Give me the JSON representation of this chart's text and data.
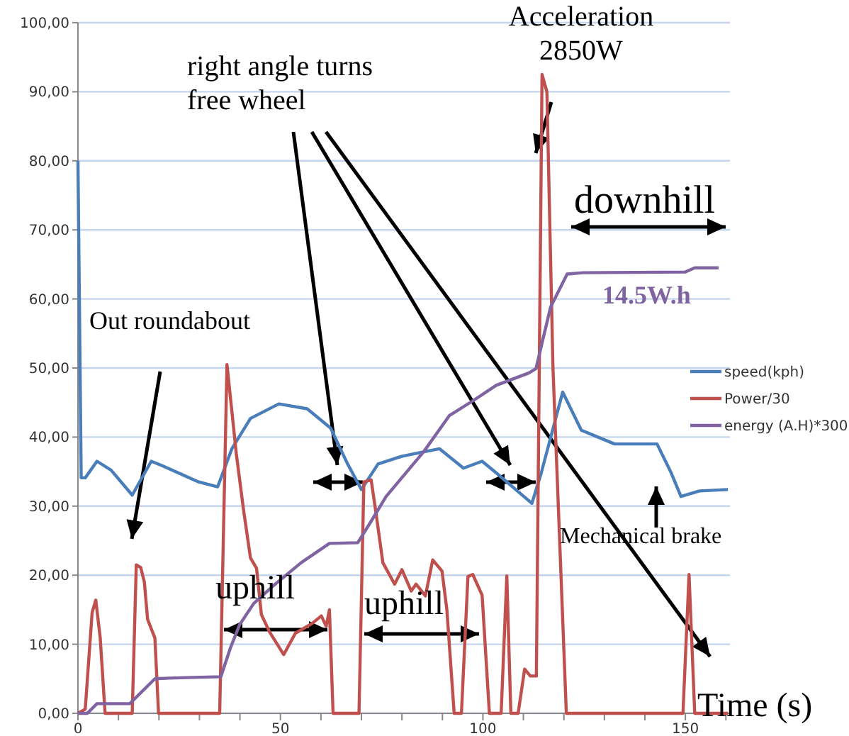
{
  "chart_data": {
    "type": "line",
    "xlabel": "Time (s)",
    "xlim": [
      0,
      161
    ],
    "xticks": [
      0,
      {
        "value": 10,
        "label": null
      },
      {
        "value": 20,
        "label": null
      },
      {
        "value": 30,
        "label": null
      },
      {
        "value": 40,
        "label": null
      },
      50,
      {
        "value": 60,
        "label": null
      },
      {
        "value": 70,
        "label": null
      },
      {
        "value": 80,
        "label": null
      },
      {
        "value": 90,
        "label": null
      },
      100,
      {
        "value": 110,
        "label": null
      },
      {
        "value": 120,
        "label": null
      },
      {
        "value": 130,
        "label": null
      },
      {
        "value": 140,
        "label": null
      },
      150,
      {
        "value": 160,
        "label": null
      }
    ],
    "ylim": [
      0,
      100
    ],
    "yticks": [
      {
        "value": 0,
        "label": "0,00"
      },
      {
        "value": 10,
        "label": "10,00"
      },
      {
        "value": 20,
        "label": "20,00"
      },
      {
        "value": 30,
        "label": "30,00"
      },
      {
        "value": 40,
        "label": "40,00"
      },
      {
        "value": 50,
        "label": "50,00"
      },
      {
        "value": 60,
        "label": "60,00"
      },
      {
        "value": 70,
        "label": "70,00"
      },
      {
        "value": 80,
        "label": "80,00"
      },
      {
        "value": 90,
        "label": "90,00"
      },
      {
        "value": 100,
        "label": "100,00"
      }
    ],
    "grid": "y",
    "legend": "right",
    "marker": "none",
    "line_style": "solid",
    "series": [
      {
        "name": "speed(kph)",
        "color": "#4a7ebb",
        "x": [
          0,
          0.8,
          1.8,
          4.7,
          8.2,
          13.4,
          18.1,
          21,
          29.8,
          34.5,
          38,
          42.6,
          49.6,
          56.6,
          62.4,
          66.5,
          70,
          74.1,
          79.9,
          85.7,
          89.3,
          95.2,
          99.8,
          103.3,
          112.1,
          114.4,
          119.7,
          124.3,
          132.5,
          143,
          146.5,
          148.9,
          153.5,
          160.5
        ],
        "values": [
          80,
          34.1,
          34.1,
          36.5,
          35.2,
          31.6,
          36.5,
          35.8,
          33.5,
          32.8,
          38.3,
          42.7,
          44.8,
          44.1,
          41.3,
          36.2,
          32.4,
          36.1,
          37.2,
          37.9,
          38.3,
          35.5,
          36.5,
          34.8,
          30.4,
          34.8,
          46.5,
          41,
          39,
          39,
          34.8,
          31.4,
          32.2,
          32.4
        ]
      },
      {
        "name": "Power/30",
        "color": "#c0504d",
        "x": [
          0,
          1.8,
          3.5,
          4.4,
          5.5,
          6.7,
          13.4,
          14.4,
          15.5,
          16.4,
          17.2,
          19,
          19.9,
          35,
          36.8,
          39.1,
          40.9,
          42.6,
          44.1,
          45.3,
          47.3,
          50.8,
          53.7,
          57.8,
          60.1,
          61.3,
          62.1,
          63,
          69.4,
          70.6,
          72.4,
          73.5,
          75.3,
          78.2,
          80,
          82.3,
          83.5,
          85.8,
          87.6,
          89.9,
          91.1,
          92.9,
          94.7,
          96.3,
          97.5,
          99.8,
          101.6,
          104.5,
          105.9,
          106.9,
          108.7,
          110.3,
          111.7,
          113.2,
          114.6,
          115.8,
          117.3,
          120.6,
          149.4,
          150.9,
          152.3,
          160.5
        ],
        "values": [
          0,
          0.6,
          14.6,
          16.4,
          10.9,
          0,
          0,
          21.5,
          21.1,
          19,
          13.6,
          10.9,
          0,
          0,
          50.5,
          37.6,
          29.4,
          22.5,
          21,
          14.3,
          11.8,
          8.5,
          11.6,
          13,
          14.1,
          12.6,
          15,
          0,
          0,
          33.5,
          33.8,
          29.4,
          21.8,
          18.7,
          20.8,
          17.7,
          18.7,
          17,
          22.2,
          20.6,
          15,
          0,
          0,
          19.8,
          20.1,
          17.1,
          0,
          0,
          19.9,
          0,
          0,
          6.4,
          5.4,
          5.4,
          92.5,
          90,
          50,
          0,
          0,
          20.1,
          0,
          0
        ]
      },
      {
        "name": "energy (A.H)*300",
        "color": "#8064a2",
        "x": [
          0,
          2.3,
          4.7,
          12.8,
          19,
          22.5,
          35.3,
          37.6,
          39.9,
          43.4,
          48.1,
          55.1,
          62.1,
          69.1,
          72.6,
          76.1,
          85.4,
          91.7,
          97.4,
          103.3,
          111.4,
          113.1,
          116.7,
          120.8,
          124.7,
          150,
          152.3,
          158.2
        ],
        "values": [
          0,
          0,
          1.4,
          1.4,
          5,
          5.1,
          5.3,
          9.4,
          12.8,
          15.9,
          18.4,
          21.8,
          24.6,
          24.7,
          28,
          31.4,
          37.9,
          43.1,
          45.2,
          47.5,
          49.3,
          49.9,
          58.8,
          63.6,
          63.8,
          63.9,
          64.5,
          64.5
        ]
      }
    ],
    "annotations": [
      "right angle turns\nfree wheel",
      "Acceleration\n2850W",
      "downhill",
      "14.5W.h",
      "Out roundabout",
      "uphill",
      "uphill",
      "Mechanical brake"
    ]
  }
}
